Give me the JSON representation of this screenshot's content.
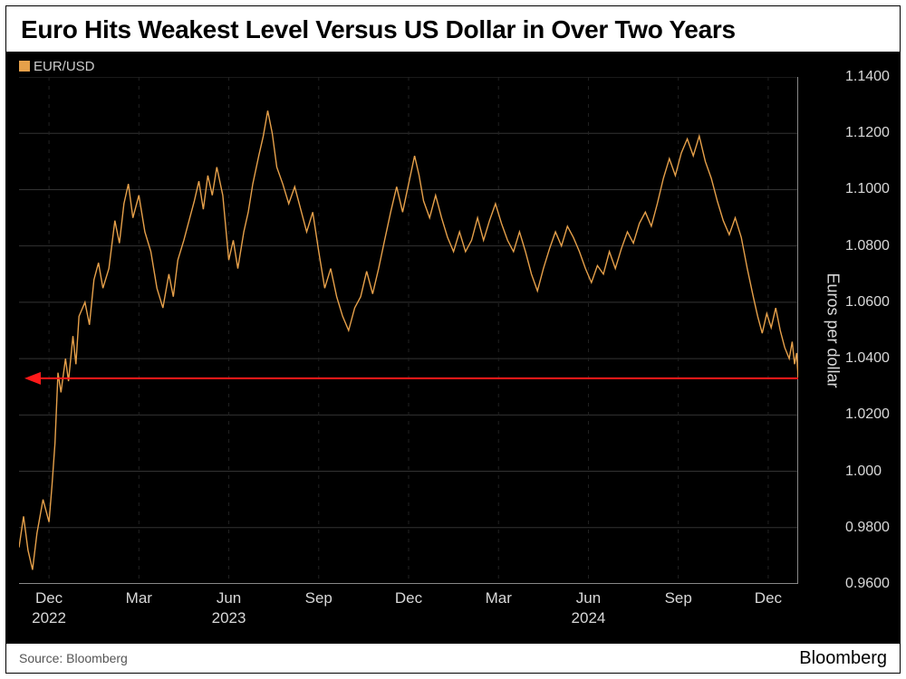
{
  "title": "Euro Hits Weakest Level Versus US Dollar in Over Two Years",
  "legend_label": "EUR/USD",
  "y_axis_label": "Euros per dollar",
  "source_line": "Source: Bloomberg",
  "brand": "Bloomberg",
  "chart": {
    "type": "line",
    "line_color": "#e6a04a",
    "line_width": 1.4,
    "background_color": "#000000",
    "grid_color": "#333333",
    "vgrid_color": "#222222",
    "axis_line_color": "#888888",
    "text_color": "#d8d8d8",
    "ylim": [
      0.96,
      1.14
    ],
    "yticks": [
      0.96,
      0.98,
      1.0,
      1.02,
      1.04,
      1.06,
      1.08,
      1.1,
      1.12,
      1.14
    ],
    "ytick_labels": [
      "0.9600",
      "0.9800",
      "1.000",
      "1.0200",
      "1.0400",
      "1.0600",
      "1.0800",
      "1.1000",
      "1.1200",
      "1.1400"
    ],
    "xlim": [
      0,
      26
    ],
    "xticks_months": [
      {
        "pos": 1,
        "label": "Dec"
      },
      {
        "pos": 4,
        "label": "Mar"
      },
      {
        "pos": 7,
        "label": "Jun"
      },
      {
        "pos": 10,
        "label": "Sep"
      },
      {
        "pos": 13,
        "label": "Dec"
      },
      {
        "pos": 16,
        "label": "Mar"
      },
      {
        "pos": 19,
        "label": "Jun"
      },
      {
        "pos": 22,
        "label": "Sep"
      },
      {
        "pos": 25,
        "label": "Dec"
      }
    ],
    "xticks_years": [
      {
        "pos": 1,
        "label": "2022"
      },
      {
        "pos": 7,
        "label": "2023"
      },
      {
        "pos": 19,
        "label": "2024"
      }
    ],
    "ref_line": {
      "y": 1.033,
      "color": "#ff1a1a",
      "width": 2,
      "arrow_end": "left"
    },
    "series": [
      {
        "x": 0.0,
        "y": 0.973
      },
      {
        "x": 0.15,
        "y": 0.984
      },
      {
        "x": 0.3,
        "y": 0.972
      },
      {
        "x": 0.45,
        "y": 0.965
      },
      {
        "x": 0.6,
        "y": 0.978
      },
      {
        "x": 0.8,
        "y": 0.99
      },
      {
        "x": 1.0,
        "y": 0.982
      },
      {
        "x": 1.1,
        "y": 0.995
      },
      {
        "x": 1.2,
        "y": 1.01
      },
      {
        "x": 1.3,
        "y": 1.035
      },
      {
        "x": 1.4,
        "y": 1.028
      },
      {
        "x": 1.55,
        "y": 1.04
      },
      {
        "x": 1.65,
        "y": 1.032
      },
      {
        "x": 1.8,
        "y": 1.048
      },
      {
        "x": 1.9,
        "y": 1.038
      },
      {
        "x": 2.0,
        "y": 1.055
      },
      {
        "x": 2.2,
        "y": 1.06
      },
      {
        "x": 2.35,
        "y": 1.052
      },
      {
        "x": 2.5,
        "y": 1.068
      },
      {
        "x": 2.65,
        "y": 1.074
      },
      {
        "x": 2.8,
        "y": 1.065
      },
      {
        "x": 3.0,
        "y": 1.072
      },
      {
        "x": 3.2,
        "y": 1.089
      },
      {
        "x": 3.35,
        "y": 1.081
      },
      {
        "x": 3.5,
        "y": 1.095
      },
      {
        "x": 3.65,
        "y": 1.102
      },
      {
        "x": 3.8,
        "y": 1.09
      },
      {
        "x": 4.0,
        "y": 1.098
      },
      {
        "x": 4.2,
        "y": 1.085
      },
      {
        "x": 4.4,
        "y": 1.078
      },
      {
        "x": 4.6,
        "y": 1.065
      },
      {
        "x": 4.8,
        "y": 1.058
      },
      {
        "x": 5.0,
        "y": 1.07
      },
      {
        "x": 5.15,
        "y": 1.062
      },
      {
        "x": 5.3,
        "y": 1.075
      },
      {
        "x": 5.5,
        "y": 1.082
      },
      {
        "x": 5.7,
        "y": 1.09
      },
      {
        "x": 5.85,
        "y": 1.096
      },
      {
        "x": 6.0,
        "y": 1.103
      },
      {
        "x": 6.15,
        "y": 1.093
      },
      {
        "x": 6.3,
        "y": 1.105
      },
      {
        "x": 6.45,
        "y": 1.098
      },
      {
        "x": 6.6,
        "y": 1.108
      },
      {
        "x": 6.8,
        "y": 1.098
      },
      {
        "x": 7.0,
        "y": 1.075
      },
      {
        "x": 7.15,
        "y": 1.082
      },
      {
        "x": 7.3,
        "y": 1.072
      },
      {
        "x": 7.5,
        "y": 1.085
      },
      {
        "x": 7.65,
        "y": 1.092
      },
      {
        "x": 7.8,
        "y": 1.102
      },
      {
        "x": 8.0,
        "y": 1.112
      },
      {
        "x": 8.15,
        "y": 1.119
      },
      {
        "x": 8.3,
        "y": 1.128
      },
      {
        "x": 8.45,
        "y": 1.12
      },
      {
        "x": 8.6,
        "y": 1.108
      },
      {
        "x": 8.8,
        "y": 1.102
      },
      {
        "x": 9.0,
        "y": 1.095
      },
      {
        "x": 9.2,
        "y": 1.101
      },
      {
        "x": 9.4,
        "y": 1.093
      },
      {
        "x": 9.6,
        "y": 1.085
      },
      {
        "x": 9.8,
        "y": 1.092
      },
      {
        "x": 10.0,
        "y": 1.078
      },
      {
        "x": 10.2,
        "y": 1.065
      },
      {
        "x": 10.4,
        "y": 1.072
      },
      {
        "x": 10.6,
        "y": 1.062
      },
      {
        "x": 10.8,
        "y": 1.055
      },
      {
        "x": 11.0,
        "y": 1.05
      },
      {
        "x": 11.2,
        "y": 1.058
      },
      {
        "x": 11.4,
        "y": 1.062
      },
      {
        "x": 11.6,
        "y": 1.071
      },
      {
        "x": 11.8,
        "y": 1.063
      },
      {
        "x": 12.0,
        "y": 1.072
      },
      {
        "x": 12.2,
        "y": 1.082
      },
      {
        "x": 12.4,
        "y": 1.092
      },
      {
        "x": 12.6,
        "y": 1.101
      },
      {
        "x": 12.8,
        "y": 1.092
      },
      {
        "x": 13.0,
        "y": 1.102
      },
      {
        "x": 13.2,
        "y": 1.112
      },
      {
        "x": 13.35,
        "y": 1.105
      },
      {
        "x": 13.5,
        "y": 1.096
      },
      {
        "x": 13.7,
        "y": 1.09
      },
      {
        "x": 13.9,
        "y": 1.098
      },
      {
        "x": 14.1,
        "y": 1.09
      },
      {
        "x": 14.3,
        "y": 1.083
      },
      {
        "x": 14.5,
        "y": 1.078
      },
      {
        "x": 14.7,
        "y": 1.085
      },
      {
        "x": 14.9,
        "y": 1.078
      },
      {
        "x": 15.1,
        "y": 1.082
      },
      {
        "x": 15.3,
        "y": 1.09
      },
      {
        "x": 15.5,
        "y": 1.082
      },
      {
        "x": 15.7,
        "y": 1.089
      },
      {
        "x": 15.9,
        "y": 1.095
      },
      {
        "x": 16.1,
        "y": 1.088
      },
      {
        "x": 16.3,
        "y": 1.082
      },
      {
        "x": 16.5,
        "y": 1.078
      },
      {
        "x": 16.7,
        "y": 1.085
      },
      {
        "x": 16.9,
        "y": 1.078
      },
      {
        "x": 17.1,
        "y": 1.07
      },
      {
        "x": 17.3,
        "y": 1.064
      },
      {
        "x": 17.5,
        "y": 1.072
      },
      {
        "x": 17.7,
        "y": 1.079
      },
      {
        "x": 17.9,
        "y": 1.085
      },
      {
        "x": 18.1,
        "y": 1.08
      },
      {
        "x": 18.3,
        "y": 1.087
      },
      {
        "x": 18.5,
        "y": 1.083
      },
      {
        "x": 18.7,
        "y": 1.078
      },
      {
        "x": 18.9,
        "y": 1.072
      },
      {
        "x": 19.1,
        "y": 1.067
      },
      {
        "x": 19.3,
        "y": 1.073
      },
      {
        "x": 19.5,
        "y": 1.07
      },
      {
        "x": 19.7,
        "y": 1.078
      },
      {
        "x": 19.9,
        "y": 1.072
      },
      {
        "x": 20.1,
        "y": 1.079
      },
      {
        "x": 20.3,
        "y": 1.085
      },
      {
        "x": 20.5,
        "y": 1.081
      },
      {
        "x": 20.7,
        "y": 1.088
      },
      {
        "x": 20.9,
        "y": 1.092
      },
      {
        "x": 21.1,
        "y": 1.087
      },
      {
        "x": 21.3,
        "y": 1.095
      },
      {
        "x": 21.5,
        "y": 1.104
      },
      {
        "x": 21.7,
        "y": 1.111
      },
      {
        "x": 21.9,
        "y": 1.105
      },
      {
        "x": 22.1,
        "y": 1.113
      },
      {
        "x": 22.3,
        "y": 1.118
      },
      {
        "x": 22.5,
        "y": 1.112
      },
      {
        "x": 22.7,
        "y": 1.119
      },
      {
        "x": 22.9,
        "y": 1.11
      },
      {
        "x": 23.1,
        "y": 1.104
      },
      {
        "x": 23.3,
        "y": 1.096
      },
      {
        "x": 23.5,
        "y": 1.089
      },
      {
        "x": 23.7,
        "y": 1.084
      },
      {
        "x": 23.9,
        "y": 1.09
      },
      {
        "x": 24.1,
        "y": 1.083
      },
      {
        "x": 24.3,
        "y": 1.072
      },
      {
        "x": 24.5,
        "y": 1.062
      },
      {
        "x": 24.65,
        "y": 1.055
      },
      {
        "x": 24.8,
        "y": 1.049
      },
      {
        "x": 24.95,
        "y": 1.056
      },
      {
        "x": 25.1,
        "y": 1.051
      },
      {
        "x": 25.25,
        "y": 1.058
      },
      {
        "x": 25.4,
        "y": 1.05
      },
      {
        "x": 25.55,
        "y": 1.044
      },
      {
        "x": 25.7,
        "y": 1.04
      },
      {
        "x": 25.8,
        "y": 1.046
      },
      {
        "x": 25.88,
        "y": 1.038
      },
      {
        "x": 25.95,
        "y": 1.042
      },
      {
        "x": 26.0,
        "y": 1.033
      }
    ]
  }
}
